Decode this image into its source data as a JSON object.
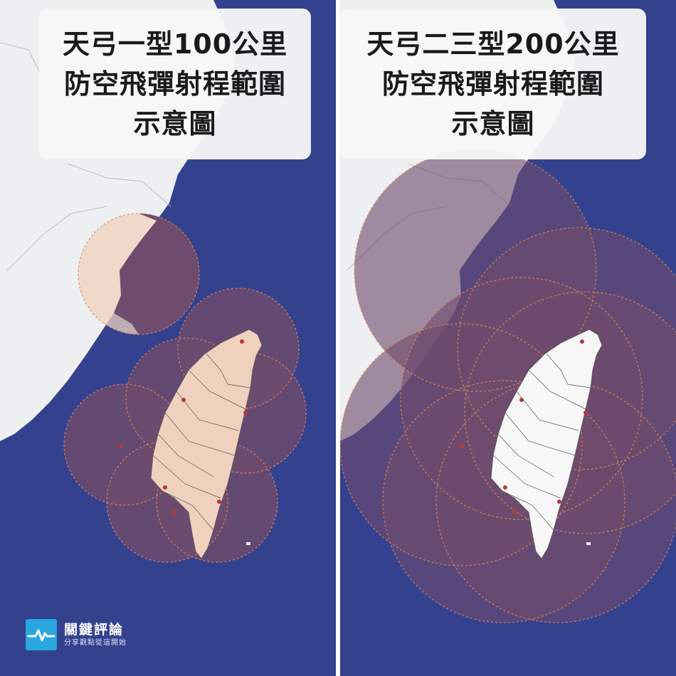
{
  "panels": {
    "left": {
      "title_lines": [
        "天弓一型100公里",
        "防空飛彈射程範圍",
        "示意圖"
      ]
    },
    "right": {
      "title_lines": [
        "天弓二三型200公里",
        "防空飛彈射程範圍",
        "示意圖"
      ]
    }
  },
  "brand": {
    "name": "關鍵評論",
    "slogan": "分享觀點從這開始"
  },
  "colors": {
    "sea": "#34418f",
    "land": "#eeeff1",
    "taiwan_left": "#efd1be",
    "taiwan_right": "#f7f7f7",
    "range_fill": "#6f4c6d",
    "range_border": "#d98a5a",
    "site_marker": "#b23a3a",
    "brand_logo": "#29a8e0"
  }
}
